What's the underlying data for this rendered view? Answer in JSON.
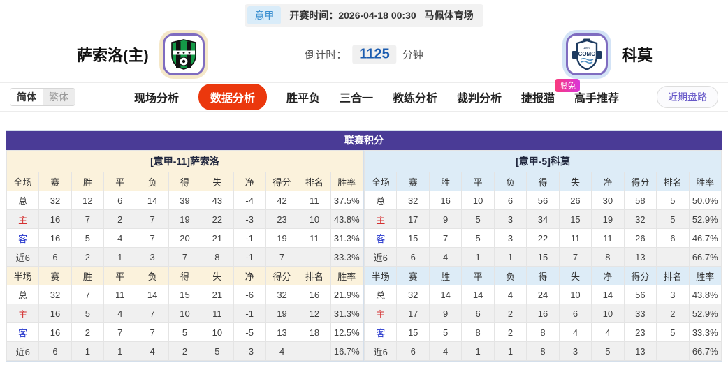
{
  "header": {
    "league": "意甲",
    "kickoff": "开赛时间：2026-04-18 00:30",
    "venue": "马佩体育场",
    "home_team": "萨索洛(主)",
    "away_team": "科莫",
    "home_crest": "sassuolo-crest",
    "away_crest": "como-crest",
    "countdown_label": "倒计时：",
    "countdown_value": "1125",
    "countdown_unit": "分钟"
  },
  "nav": {
    "lang_simplified": "简体",
    "lang_traditional": "繁体",
    "items": [
      {
        "label": "现场分析",
        "active": false,
        "badge": ""
      },
      {
        "label": "数据分析",
        "active": true,
        "badge": ""
      },
      {
        "label": "胜平负",
        "active": false,
        "badge": ""
      },
      {
        "label": "三合一",
        "active": false,
        "badge": ""
      },
      {
        "label": "教练分析",
        "active": false,
        "badge": ""
      },
      {
        "label": "裁判分析",
        "active": false,
        "badge": ""
      },
      {
        "label": "捷报猫",
        "active": false,
        "badge": "限免"
      },
      {
        "label": "高手推荐",
        "active": false,
        "badge": ""
      }
    ],
    "recent_trends_button": "近期盘路"
  },
  "standings": {
    "title": "联赛积分",
    "home_header": "[意甲-11]萨索洛",
    "away_header": "[意甲-5]科莫",
    "columns_full": [
      "全场",
      "赛",
      "胜",
      "平",
      "负",
      "得",
      "失",
      "净",
      "得分",
      "排名",
      "胜率"
    ],
    "columns_half": [
      "半场",
      "赛",
      "胜",
      "平",
      "负",
      "得",
      "失",
      "净",
      "得分",
      "排名",
      "胜率"
    ],
    "home": {
      "full": [
        {
          "label": "总",
          "cells": [
            "32",
            "12",
            "6",
            "14",
            "39",
            "43",
            "-4",
            "42",
            "11",
            "37.5%"
          ]
        },
        {
          "label": "主",
          "cells": [
            "16",
            "7",
            "2",
            "7",
            "19",
            "22",
            "-3",
            "23",
            "10",
            "43.8%"
          ]
        },
        {
          "label": "客",
          "cells": [
            "16",
            "5",
            "4",
            "7",
            "20",
            "21",
            "-1",
            "19",
            "11",
            "31.3%"
          ]
        },
        {
          "label": "近6",
          "cells": [
            "6",
            "2",
            "1",
            "3",
            "7",
            "8",
            "-1",
            "7",
            "",
            "33.3%"
          ]
        }
      ],
      "half": [
        {
          "label": "总",
          "cells": [
            "32",
            "7",
            "11",
            "14",
            "15",
            "21",
            "-6",
            "32",
            "16",
            "21.9%"
          ]
        },
        {
          "label": "主",
          "cells": [
            "16",
            "5",
            "4",
            "7",
            "10",
            "11",
            "-1",
            "19",
            "12",
            "31.3%"
          ]
        },
        {
          "label": "客",
          "cells": [
            "16",
            "2",
            "7",
            "7",
            "5",
            "10",
            "-5",
            "13",
            "18",
            "12.5%"
          ]
        },
        {
          "label": "近6",
          "cells": [
            "6",
            "1",
            "1",
            "4",
            "2",
            "5",
            "-3",
            "4",
            "",
            "16.7%"
          ]
        }
      ]
    },
    "away": {
      "full": [
        {
          "label": "总",
          "cells": [
            "32",
            "16",
            "10",
            "6",
            "56",
            "26",
            "30",
            "58",
            "5",
            "50.0%"
          ]
        },
        {
          "label": "主",
          "cells": [
            "17",
            "9",
            "5",
            "3",
            "34",
            "15",
            "19",
            "32",
            "5",
            "52.9%"
          ]
        },
        {
          "label": "客",
          "cells": [
            "15",
            "7",
            "5",
            "3",
            "22",
            "11",
            "11",
            "26",
            "6",
            "46.7%"
          ]
        },
        {
          "label": "近6",
          "cells": [
            "6",
            "4",
            "1",
            "1",
            "15",
            "7",
            "8",
            "13",
            "",
            "66.7%"
          ]
        }
      ],
      "half": [
        {
          "label": "总",
          "cells": [
            "32",
            "14",
            "14",
            "4",
            "24",
            "10",
            "14",
            "56",
            "3",
            "43.8%"
          ]
        },
        {
          "label": "主",
          "cells": [
            "17",
            "9",
            "6",
            "2",
            "16",
            "6",
            "10",
            "33",
            "2",
            "52.9%"
          ]
        },
        {
          "label": "客",
          "cells": [
            "15",
            "5",
            "8",
            "2",
            "8",
            "4",
            "4",
            "23",
            "5",
            "33.3%"
          ]
        },
        {
          "label": "近6",
          "cells": [
            "6",
            "4",
            "1",
            "1",
            "8",
            "3",
            "5",
            "13",
            "",
            "66.7%"
          ]
        }
      ]
    }
  },
  "colors": {
    "accent_red": "#eb380d",
    "panel_purple": "#4a3b96",
    "badge_pink": "#e9349f",
    "home_header_bg": "#fbf2dc",
    "away_header_bg": "#ddecf7",
    "countdown_blue": "#1b5cb0",
    "row_label_home": "#d43030",
    "row_label_away": "#2334cc"
  }
}
